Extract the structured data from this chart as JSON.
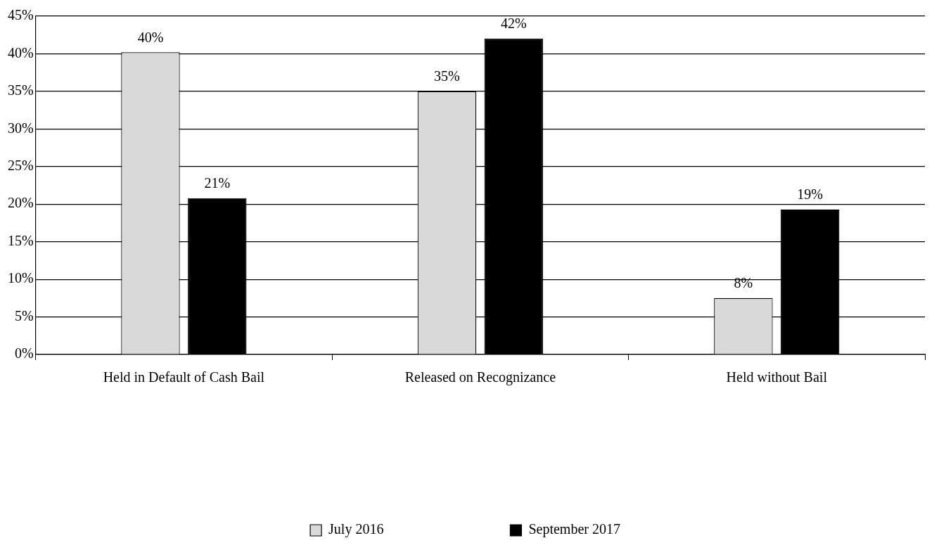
{
  "chart_data": {
    "type": "bar",
    "categories": [
      "Held in Default of Cash Bail",
      "Released on Recognizance",
      "Held without Bail"
    ],
    "series": [
      {
        "name": "July 2016",
        "color": "#d9d9d9",
        "values": [
          40.2,
          35.0,
          7.5
        ],
        "value_labels": [
          "40%",
          "35%",
          "8%"
        ]
      },
      {
        "name": "September 2017",
        "color": "#000000",
        "values": [
          20.8,
          42.0,
          19.3
        ],
        "value_labels": [
          "21%",
          "42%",
          "19%"
        ]
      }
    ],
    "ylim": [
      0,
      45
    ],
    "yticks": [
      {
        "value": 0,
        "label": "0%"
      },
      {
        "value": 5,
        "label": "5%"
      },
      {
        "value": 10,
        "label": "10%"
      },
      {
        "value": 15,
        "label": "15%"
      },
      {
        "value": 20,
        "label": "20%"
      },
      {
        "value": 25,
        "label": "25%"
      },
      {
        "value": 30,
        "label": "30%"
      },
      {
        "value": 35,
        "label": "35%"
      },
      {
        "value": 40,
        "label": "40%"
      },
      {
        "value": 45,
        "label": "45%"
      }
    ],
    "grid": "y",
    "legend": "bottom"
  }
}
